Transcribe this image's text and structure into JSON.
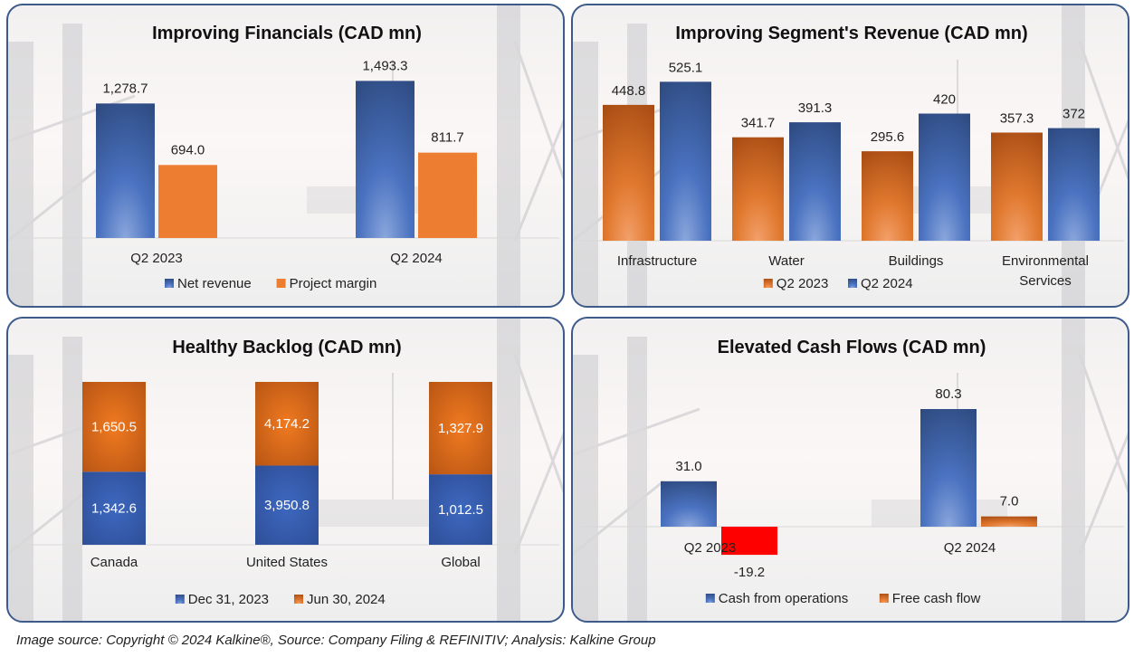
{
  "footer": "Image source: Copyright © 2024 Kalkine®, Source: Company Filing & REFINITIV; Analysis: Kalkine Group",
  "colors": {
    "blue_top": "#2e4a80",
    "blue_bottom": "#6d8fd0",
    "orange_flat": "#ed7d31",
    "orange_top": "#a84c14",
    "orange_bottom": "#f3a06a",
    "negative_red": "#ff0000",
    "panel_border": "#3d5a8a"
  },
  "chart_data": [
    {
      "id": "financials",
      "type": "bar",
      "title": "Improving Financials (CAD mn)",
      "categories": [
        "Q2 2023",
        "Q2 2024"
      ],
      "series": [
        {
          "name": "Net revenue",
          "values": [
            1278.7,
            1493.3
          ],
          "labels": [
            "1,278.7",
            "1,493.3"
          ],
          "style": "blue"
        },
        {
          "name": "Project margin",
          "values": [
            694.0,
            811.7
          ],
          "labels": [
            "694.0",
            "811.7"
          ],
          "style": "orange-flat"
        }
      ],
      "ylim": [
        0,
        1600
      ],
      "legend": "bottom",
      "grid": false
    },
    {
      "id": "segments",
      "type": "bar",
      "title": "Improving Segment's Revenue (CAD mn)",
      "categories": [
        "Infrastructure",
        "Water",
        "Buildings",
        "Environmental Services"
      ],
      "series": [
        {
          "name": "Q2 2023",
          "values": [
            448.8,
            341.7,
            295.6,
            357.3
          ],
          "labels": [
            "448.8",
            "341.7",
            "295.6",
            "357.3"
          ],
          "style": "orange"
        },
        {
          "name": "Q2 2024",
          "values": [
            525.1,
            391.3,
            420,
            372
          ],
          "labels": [
            "525.1",
            "391.3",
            "420",
            "372"
          ],
          "style": "blue"
        }
      ],
      "ylim": [
        0,
        580
      ],
      "legend": "bottom",
      "grid": false
    },
    {
      "id": "backlog",
      "type": "bar",
      "stacked": true,
      "percent_stacked": true,
      "title": "Healthy Backlog (CAD mn)",
      "categories": [
        "Canada",
        "United States",
        "Global"
      ],
      "series": [
        {
          "name": "Dec 31, 2023",
          "values": [
            1342.6,
            3950.8,
            1012.5
          ],
          "labels": [
            "1,342.6",
            "3,950.8",
            "1,012.5"
          ],
          "style": "blue"
        },
        {
          "name": "Jun 30, 2024",
          "values": [
            1650.5,
            4174.2,
            1327.9
          ],
          "labels": [
            "1,650.5",
            "4,174.2",
            "1,327.9"
          ],
          "style": "orange"
        }
      ],
      "legend": "bottom",
      "grid": false
    },
    {
      "id": "cashflows",
      "type": "bar",
      "title": "Elevated Cash Flows (CAD mn)",
      "categories": [
        "Q2 2023",
        "Q2 2024"
      ],
      "series": [
        {
          "name": "Cash from operations",
          "values": [
            31.0,
            80.3
          ],
          "labels": [
            "31.0",
            "80.3"
          ],
          "style": "blue"
        },
        {
          "name": "Free cash flow",
          "values": [
            -19.2,
            7.0
          ],
          "labels": [
            "-19.2",
            "7.0"
          ],
          "style": "orange"
        }
      ],
      "ylim": [
        -25,
        100
      ],
      "legend": "bottom",
      "grid": false
    }
  ]
}
